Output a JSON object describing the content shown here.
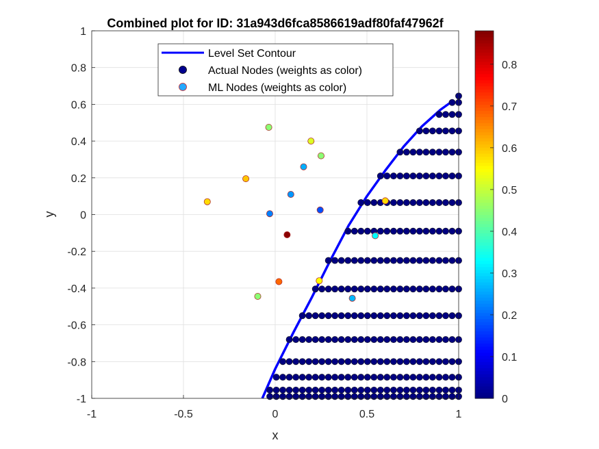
{
  "chart_data": {
    "type": "scatter",
    "title": "Combined plot for ID: 31a943d6fca8586619adf80faf47962f",
    "xlabel": "x",
    "ylabel": "y",
    "xlim": [
      -1,
      1
    ],
    "ylim": [
      -1,
      1
    ],
    "grid": true,
    "xticks": [
      "-1",
      "-0.5",
      "0",
      "0.5",
      "1"
    ],
    "yticks": [
      "-1",
      "-0.8",
      "-0.6",
      "-0.4",
      "-0.2",
      "0",
      "0.2",
      "0.4",
      "0.6",
      "0.8",
      "1"
    ],
    "legend": {
      "location": "top",
      "entries": [
        "Level Set Contour",
        "Actual Nodes (weights as color)",
        "ML Nodes (weights as color)"
      ]
    },
    "colorbar": {
      "colormap": "jet",
      "range": [
        0,
        0.88
      ],
      "ticks": [
        "0",
        "0.1",
        "0.2",
        "0.3",
        "0.4",
        "0.5",
        "0.6",
        "0.7",
        "0.8"
      ]
    },
    "contour": {
      "name": "Level Set Contour",
      "color": "#0000ff",
      "points": [
        [
          -0.07,
          -1.0
        ],
        [
          0.0,
          -0.84
        ],
        [
          0.1,
          -0.64
        ],
        [
          0.2,
          -0.45
        ],
        [
          0.3,
          -0.25
        ],
        [
          0.4,
          -0.06
        ],
        [
          0.5,
          0.1
        ],
        [
          0.6,
          0.24
        ],
        [
          0.7,
          0.37
        ],
        [
          0.8,
          0.48
        ],
        [
          0.9,
          0.57
        ],
        [
          0.97,
          0.62
        ]
      ]
    },
    "actual_nodes": {
      "name": "Actual Nodes (weights as color)",
      "color": "#00008f",
      "weight": 0,
      "rows": [
        {
          "y": 0.645,
          "x_start": 0.98
        },
        {
          "y": 0.61,
          "x_start": 0.93
        },
        {
          "y": 0.545,
          "x_start": 0.87
        },
        {
          "y": 0.455,
          "x_start": 0.78
        },
        {
          "y": 0.34,
          "x_start": 0.68
        },
        {
          "y": 0.21,
          "x_start": 0.56
        },
        {
          "y": 0.065,
          "x_start": 0.45
        },
        {
          "y": -0.09,
          "x_start": 0.37
        },
        {
          "y": -0.25,
          "x_start": 0.28
        },
        {
          "y": -0.405,
          "x_start": 0.19
        },
        {
          "y": -0.55,
          "x_start": 0.12
        },
        {
          "y": -0.68,
          "x_start": 0.07
        },
        {
          "y": -0.8,
          "x_start": 0.02
        },
        {
          "y": -0.885,
          "x_start": -0.01
        },
        {
          "y": -0.955,
          "x_start": -0.04
        },
        {
          "y": -0.99,
          "x_start": -0.06
        }
      ],
      "x_end": 1.0
    },
    "ml_nodes": {
      "name": "ML Nodes (weights as color)",
      "points": [
        {
          "x": -0.37,
          "y": 0.07,
          "w": 0.58
        },
        {
          "x": -0.16,
          "y": 0.195,
          "w": 0.6
        },
        {
          "x": -0.035,
          "y": 0.475,
          "w": 0.45
        },
        {
          "x": 0.195,
          "y": 0.4,
          "w": 0.52
        },
        {
          "x": 0.25,
          "y": 0.32,
          "w": 0.45
        },
        {
          "x": 0.155,
          "y": 0.26,
          "w": 0.26
        },
        {
          "x": 0.085,
          "y": 0.11,
          "w": 0.24
        },
        {
          "x": 0.245,
          "y": 0.025,
          "w": 0.18
        },
        {
          "x": -0.03,
          "y": 0.005,
          "w": 0.22
        },
        {
          "x": 0.065,
          "y": -0.11,
          "w": 0.87
        },
        {
          "x": 0.545,
          "y": -0.115,
          "w": 0.33
        },
        {
          "x": 0.6,
          "y": 0.075,
          "w": 0.58
        },
        {
          "x": 0.02,
          "y": -0.365,
          "w": 0.68
        },
        {
          "x": 0.24,
          "y": -0.36,
          "w": 0.55
        },
        {
          "x": 0.42,
          "y": -0.455,
          "w": 0.27
        },
        {
          "x": -0.095,
          "y": -0.445,
          "w": 0.45
        }
      ]
    }
  }
}
